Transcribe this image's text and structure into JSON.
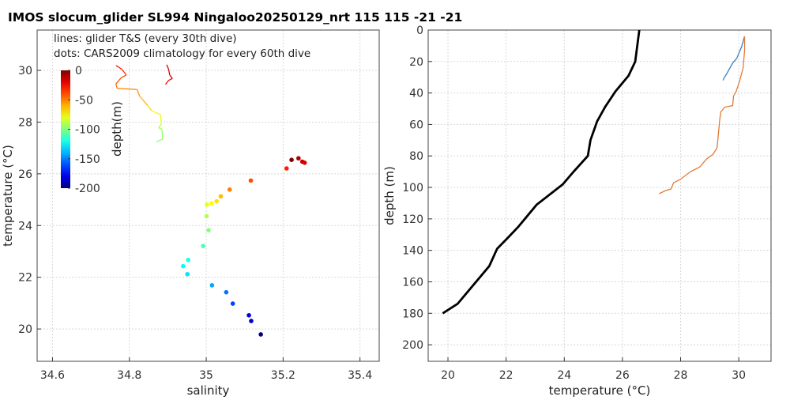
{
  "title": "IMOS slocum_glider SL994 Ningaloo20250129_nrt 115  115  -21  -21",
  "chart_data": [
    {
      "type": "scatter",
      "xlabel": "salinity",
      "ylabel": "temperature (°C)",
      "xlim": [
        34.56,
        35.45
      ],
      "ylim": [
        18.75,
        31.56
      ],
      "xticks": [
        34.6,
        34.8,
        35,
        35.2,
        35.4
      ],
      "xtick_labels": [
        "34.6",
        "34.8",
        "35",
        "35.2",
        "35.4"
      ],
      "yticks": [
        20,
        22,
        24,
        26,
        28,
        30
      ],
      "ytick_labels": [
        "20",
        "22",
        "24",
        "26",
        "28",
        "30"
      ],
      "grid": true,
      "legend_text": [
        "lines: glider T&S (every 30th dive)",
        "dots: CARS2009 climatology for every 60th dive"
      ],
      "colorbar": {
        "label": "depth(m)",
        "range": [
          -200,
          0
        ],
        "ticks": [
          0,
          -50,
          -100,
          -150,
          -200
        ],
        "tick_labels": [
          "0",
          "-50",
          "-100",
          "-150",
          "-200"
        ],
        "colormap": "jet",
        "location": "upper-left"
      },
      "dots": [
        {
          "s": 35.222,
          "t": 26.54,
          "d": 0
        },
        {
          "s": 35.24,
          "t": 26.6,
          "d": 8
        },
        {
          "s": 35.25,
          "t": 26.47,
          "d": 14
        },
        {
          "s": 35.256,
          "t": 26.43,
          "d": 18
        },
        {
          "s": 35.209,
          "t": 26.21,
          "d": 30
        },
        {
          "s": 35.116,
          "t": 25.74,
          "d": 40
        },
        {
          "s": 35.061,
          "t": 25.39,
          "d": 50
        },
        {
          "s": 35.038,
          "t": 25.13,
          "d": 62
        },
        {
          "s": 35.027,
          "t": 24.94,
          "d": 70
        },
        {
          "s": 35.014,
          "t": 24.86,
          "d": 75
        },
        {
          "s": 35.002,
          "t": 24.81,
          "d": 80
        },
        {
          "s": 35.001,
          "t": 24.36,
          "d": 90
        },
        {
          "s": 35.006,
          "t": 23.82,
          "d": 100
        },
        {
          "s": 34.992,
          "t": 23.21,
          "d": 110
        },
        {
          "s": 34.953,
          "t": 22.67,
          "d": 120
        },
        {
          "s": 34.94,
          "t": 22.43,
          "d": 125
        },
        {
          "s": 34.951,
          "t": 22.12,
          "d": 130
        },
        {
          "s": 35.015,
          "t": 21.69,
          "d": 142
        },
        {
          "s": 35.052,
          "t": 21.42,
          "d": 152
        },
        {
          "s": 35.069,
          "t": 20.98,
          "d": 162
        },
        {
          "s": 35.111,
          "t": 20.53,
          "d": 178
        },
        {
          "s": 35.117,
          "t": 20.31,
          "d": 186
        },
        {
          "s": 35.142,
          "t": 19.79,
          "d": 200
        }
      ],
      "lines": [
        {
          "s": [
            34.765,
            34.78,
            34.792,
            34.779,
            34.765,
            34.768,
            34.82,
            34.827,
            34.847,
            34.858,
            34.881,
            34.883,
            34.876,
            34.885,
            34.886,
            34.871
          ],
          "t": [
            30.19,
            30.05,
            29.82,
            29.72,
            29.48,
            29.31,
            29.26,
            29.0,
            28.65,
            28.44,
            28.29,
            27.93,
            27.78,
            27.73,
            27.34,
            27.24
          ],
          "d": [
            30,
            33,
            38,
            42,
            46,
            50,
            54,
            60,
            68,
            74,
            80,
            88,
            92,
            95,
            100,
            104
          ]
        },
        {
          "s": [
            34.897,
            34.902,
            34.905,
            34.912,
            34.902,
            34.894
          ],
          "t": [
            30.22,
            30.05,
            29.82,
            29.69,
            29.61,
            29.46
          ],
          "d": [
            14,
            17,
            20,
            23,
            26,
            30
          ]
        }
      ]
    },
    {
      "type": "line",
      "xlabel": "temperature (°C)",
      "ylabel": "depth (m)",
      "xlim": [
        19.32,
        31.11
      ],
      "ylim": [
        210.5,
        0
      ],
      "y_reversed": true,
      "grid": true,
      "xticks": [
        20,
        22,
        24,
        26,
        28,
        30
      ],
      "xtick_labels": [
        "20",
        "22",
        "24",
        "26",
        "28",
        "30"
      ],
      "yticks": [
        0,
        20,
        40,
        60,
        80,
        100,
        120,
        140,
        160,
        180,
        200
      ],
      "ytick_labels": [
        "0",
        "20",
        "40",
        "60",
        "80",
        "100",
        "120",
        "140",
        "160",
        "180",
        "200"
      ],
      "series": [
        {
          "color": "#000000",
          "t": [
            26.58,
            26.44,
            26.21,
            25.76,
            25.4,
            25.13,
            24.9,
            24.81,
            24.32,
            23.95,
            23.05,
            22.42,
            22.06,
            21.69,
            21.42,
            20.33,
            19.82
          ],
          "d": [
            0,
            20,
            29,
            39,
            49,
            58,
            70,
            80,
            90,
            98,
            111,
            125,
            132,
            139,
            150,
            174,
            180
          ]
        },
        {
          "color": "#3b82c4",
          "t": [
            30.2,
            30.09,
            29.93,
            29.79,
            29.61,
            29.48,
            29.46
          ],
          "d": [
            4,
            11,
            18,
            21,
            27,
            31,
            32
          ]
        },
        {
          "color": "#e07b39",
          "t": [
            30.2,
            30.2,
            30.15,
            30.02,
            29.91,
            29.82,
            29.79,
            29.52,
            29.38,
            29.34,
            29.28,
            29.25,
            29.11,
            28.89,
            28.66,
            28.34,
            27.98,
            27.76,
            27.67,
            27.49,
            27.26
          ],
          "d": [
            4,
            13,
            24,
            33,
            39,
            42,
            48,
            49,
            52,
            58,
            70,
            75,
            79,
            82,
            87,
            90,
            95,
            97,
            101,
            102,
            104
          ]
        }
      ]
    }
  ]
}
